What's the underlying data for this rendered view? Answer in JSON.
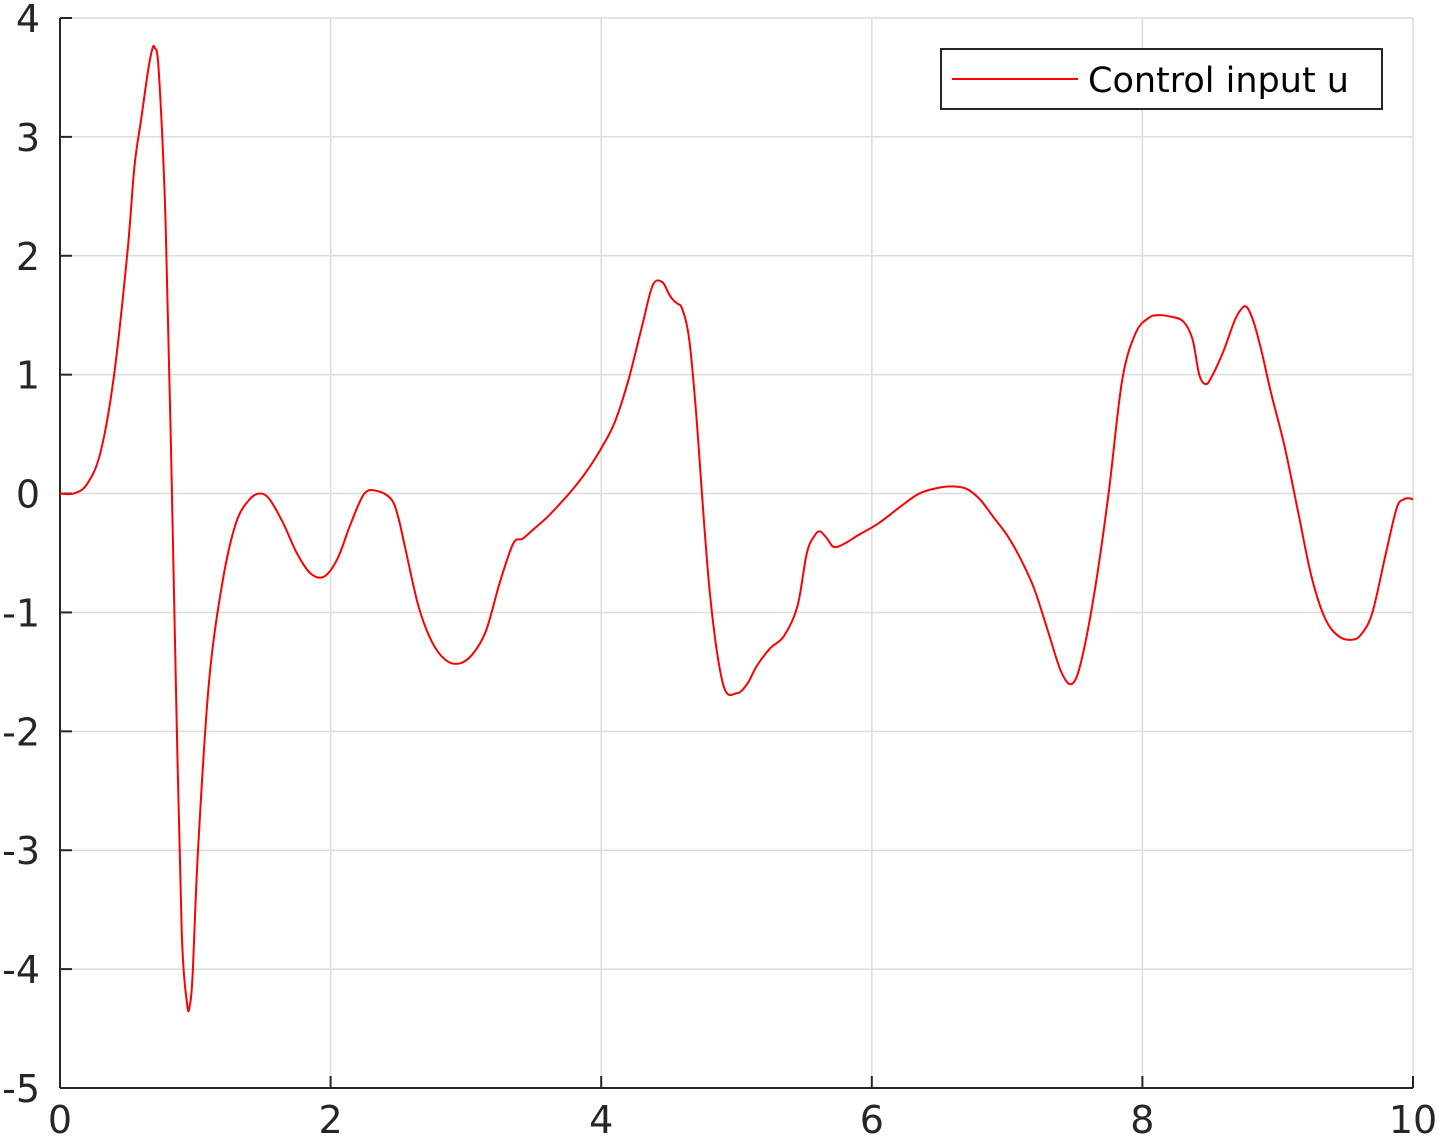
{
  "chart_data": {
    "type": "line",
    "title": "",
    "xlabel": "",
    "ylabel": "",
    "xlim": [
      0,
      10
    ],
    "ylim": [
      -5,
      4
    ],
    "grid": true,
    "legend_position": "top-right",
    "x_ticks": [
      "0",
      "2",
      "4",
      "6",
      "8",
      "10"
    ],
    "y_ticks": [
      "4",
      "3",
      "2",
      "1",
      "0",
      "-1",
      "-2",
      "-3",
      "-4",
      "-5"
    ],
    "series": [
      {
        "name": "Control input u",
        "color": "#ff0000",
        "x": [
          0,
          0.1,
          0.2,
          0.3,
          0.4,
          0.5,
          0.55,
          0.6,
          0.65,
          0.68,
          0.7,
          0.73,
          0.78,
          0.82,
          0.86,
          0.9,
          0.94,
          0.96,
          0.98,
          1.02,
          1.1,
          1.2,
          1.3,
          1.4,
          1.48,
          1.55,
          1.65,
          1.75,
          1.85,
          1.95,
          2.05,
          2.15,
          2.25,
          2.35,
          2.45,
          2.5,
          2.55,
          2.65,
          2.75,
          2.85,
          2.95,
          3.05,
          3.15,
          3.25,
          3.35,
          3.42,
          3.5,
          3.6,
          3.7,
          3.8,
          3.9,
          4.0,
          4.1,
          4.2,
          4.3,
          4.38,
          4.45,
          4.5,
          4.53,
          4.56,
          4.6,
          4.65,
          4.7,
          4.8,
          4.9,
          5.0,
          5.08,
          5.15,
          5.25,
          5.35,
          5.45,
          5.52,
          5.58,
          5.62,
          5.67,
          5.72,
          5.8,
          5.9,
          6.05,
          6.2,
          6.35,
          6.5,
          6.6,
          6.7,
          6.8,
          6.9,
          7.0,
          7.1,
          7.2,
          7.3,
          7.4,
          7.48,
          7.55,
          7.65,
          7.75,
          7.85,
          7.95,
          8.05,
          8.12,
          8.2,
          8.3,
          8.37,
          8.42,
          8.47,
          8.52,
          8.6,
          8.68,
          8.73,
          8.77,
          8.82,
          8.88,
          8.95,
          9.05,
          9.15,
          9.25,
          9.35,
          9.45,
          9.55,
          9.62,
          9.7,
          9.8,
          9.88,
          9.93,
          9.97,
          10.0
        ],
        "y": [
          0.0,
          0.0,
          0.08,
          0.35,
          1.0,
          2.05,
          2.75,
          3.15,
          3.55,
          3.73,
          3.75,
          3.55,
          2.3,
          0.4,
          -1.8,
          -3.7,
          -4.3,
          -4.3,
          -4.05,
          -3.0,
          -1.6,
          -0.75,
          -0.25,
          -0.05,
          0.0,
          -0.05,
          -0.25,
          -0.5,
          -0.67,
          -0.7,
          -0.55,
          -0.25,
          0.0,
          0.02,
          -0.05,
          -0.2,
          -0.45,
          -0.95,
          -1.25,
          -1.4,
          -1.43,
          -1.35,
          -1.15,
          -0.75,
          -0.42,
          -0.38,
          -0.3,
          -0.2,
          -0.08,
          0.05,
          0.2,
          0.38,
          0.6,
          0.95,
          1.4,
          1.75,
          1.78,
          1.68,
          1.63,
          1.6,
          1.55,
          1.3,
          0.7,
          -0.8,
          -1.6,
          -1.68,
          -1.6,
          -1.45,
          -1.3,
          -1.2,
          -0.95,
          -0.5,
          -0.35,
          -0.32,
          -0.38,
          -0.45,
          -0.42,
          -0.35,
          -0.25,
          -0.12,
          0.0,
          0.05,
          0.06,
          0.04,
          -0.05,
          -0.2,
          -0.35,
          -0.55,
          -0.8,
          -1.15,
          -1.5,
          -1.6,
          -1.4,
          -0.8,
          0.0,
          0.95,
          1.35,
          1.48,
          1.5,
          1.49,
          1.45,
          1.3,
          1.0,
          0.92,
          1.0,
          1.2,
          1.45,
          1.55,
          1.57,
          1.45,
          1.2,
          0.85,
          0.4,
          -0.15,
          -0.7,
          -1.05,
          -1.2,
          -1.23,
          -1.18,
          -1.0,
          -0.5,
          -0.12,
          -0.05,
          -0.04,
          -0.05
        ]
      }
    ]
  }
}
